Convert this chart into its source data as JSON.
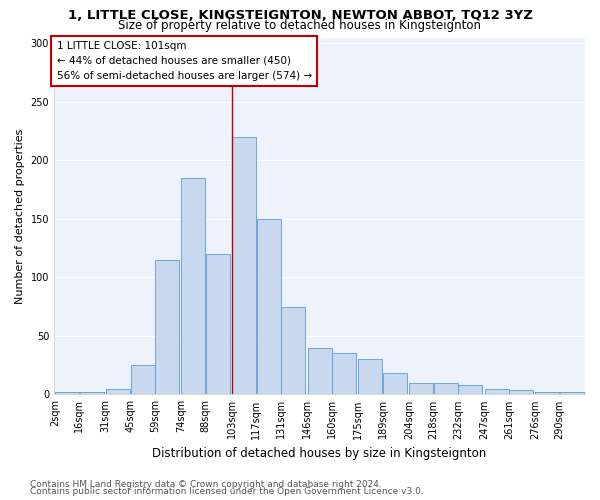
{
  "title1": "1, LITTLE CLOSE, KINGSTEIGNTON, NEWTON ABBOT, TQ12 3YZ",
  "title2": "Size of property relative to detached houses in Kingsteignton",
  "xlabel": "Distribution of detached houses by size in Kingsteignton",
  "ylabel": "Number of detached properties",
  "footer1": "Contains HM Land Registry data © Crown copyright and database right 2024.",
  "footer2": "Contains public sector information licensed under the Open Government Licence v3.0.",
  "annotation_line1": "1 LITTLE CLOSE: 101sqm",
  "annotation_line2": "← 44% of detached houses are smaller (450)",
  "annotation_line3": "56% of semi-detached houses are larger (574) →",
  "bar_color": "#c8d9ef",
  "bar_edge_color": "#5b9bd5",
  "vline_color": "#c00000",
  "background_color": "#eef2fa",
  "categories": [
    "2sqm",
    "16sqm",
    "31sqm",
    "45sqm",
    "59sqm",
    "74sqm",
    "88sqm",
    "103sqm",
    "117sqm",
    "131sqm",
    "146sqm",
    "160sqm",
    "175sqm",
    "189sqm",
    "204sqm",
    "218sqm",
    "232sqm",
    "247sqm",
    "261sqm",
    "276sqm",
    "290sqm"
  ],
  "bin_left": [
    2,
    16,
    31,
    45,
    59,
    74,
    88,
    103,
    117,
    131,
    146,
    160,
    175,
    189,
    204,
    218,
    232,
    247,
    261,
    276,
    290
  ],
  "bin_width": 14,
  "values": [
    2,
    2,
    5,
    25,
    115,
    185,
    120,
    220,
    150,
    75,
    40,
    35,
    30,
    18,
    10,
    10,
    8,
    5,
    4,
    2,
    2
  ],
  "ylim": [
    0,
    305
  ],
  "yticks": [
    0,
    50,
    100,
    150,
    200,
    250,
    300
  ],
  "vline_x_bin_index": 7,
  "grid_color": "#ffffff",
  "title1_fontsize": 9.5,
  "title2_fontsize": 8.5,
  "xlabel_fontsize": 8.5,
  "ylabel_fontsize": 8,
  "tick_fontsize": 7,
  "footer_fontsize": 6.5,
  "annot_fontsize": 7.5
}
